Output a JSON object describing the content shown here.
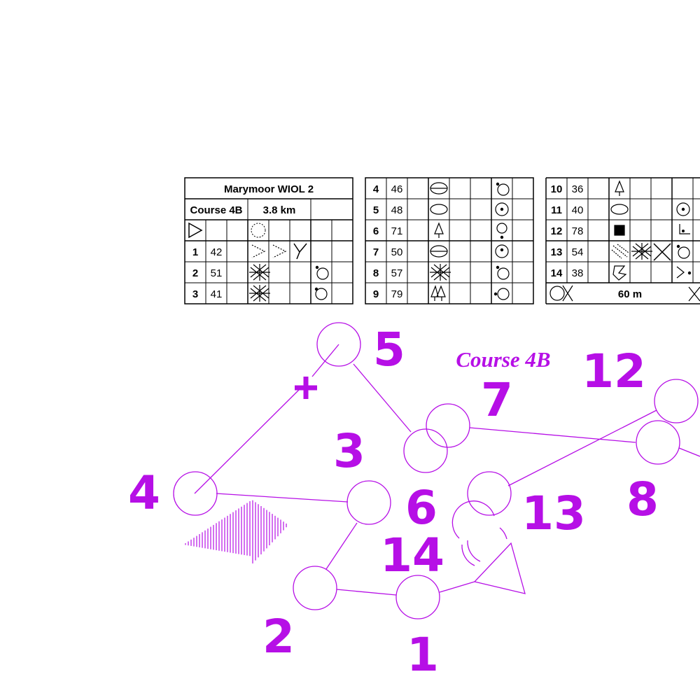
{
  "event": {
    "title": "Marymoor WIOL 2",
    "course": "Course 4B",
    "length": "3.8 km"
  },
  "map_label": "Course 4B",
  "finish": {
    "distance": "60 m"
  },
  "colors": {
    "course": "#b60fe6",
    "grid": "#000000"
  },
  "control_numbers": [
    "1",
    "2",
    "3",
    "4",
    "5",
    "6",
    "7",
    "8",
    "12",
    "13",
    "14"
  ],
  "descriptions": [
    {
      "seq": "1",
      "code": "42",
      "symbols": [
        "dotted-re-entrant-icon",
        "dotted-re-entrant-icon",
        "junction-icon"
      ]
    },
    {
      "seq": "2",
      "code": "51",
      "symbols": [
        "thicket-icon",
        "",
        "",
        "side-icon"
      ]
    },
    {
      "seq": "3",
      "code": "41",
      "symbols": [
        "thicket-icon",
        "",
        "",
        "side-icon"
      ]
    },
    {
      "seq": "4",
      "code": "46",
      "symbols": [
        "vegetation-boundary-icon",
        "",
        "",
        "side-icon"
      ]
    },
    {
      "seq": "5",
      "code": "48",
      "symbols": [
        "knoll-icon",
        "",
        "",
        "center-icon"
      ]
    },
    {
      "seq": "6",
      "code": "71",
      "symbols": [
        "tree-icon",
        "",
        "",
        "foot-icon"
      ]
    },
    {
      "seq": "7",
      "code": "50",
      "symbols": [
        "vegetation-boundary-icon",
        "",
        "",
        "center-icon"
      ]
    },
    {
      "seq": "8",
      "code": "57",
      "symbols": [
        "thicket-icon",
        "",
        "",
        "side-icon"
      ]
    },
    {
      "seq": "9",
      "code": "79",
      "symbols": [
        "double-tree-icon",
        "",
        "",
        "west-side-icon"
      ]
    },
    {
      "seq": "10",
      "code": "36",
      "symbols": [
        "tree-icon",
        "",
        "",
        ""
      ]
    },
    {
      "seq": "11",
      "code": "40",
      "symbols": [
        "knoll-icon",
        "",
        "",
        "center-icon"
      ]
    },
    {
      "seq": "12",
      "code": "78",
      "symbols": [
        "boulder-icon",
        "",
        "",
        "corner-icon"
      ]
    },
    {
      "seq": "13",
      "code": "54",
      "symbols": [
        "rough-open-icon",
        "thicket-icon",
        "crossing-icon",
        "side-icon"
      ]
    },
    {
      "seq": "14",
      "code": "38",
      "symbols": [
        "re-entrant-icon",
        "",
        "",
        "re-entrant-end-icon"
      ]
    }
  ]
}
